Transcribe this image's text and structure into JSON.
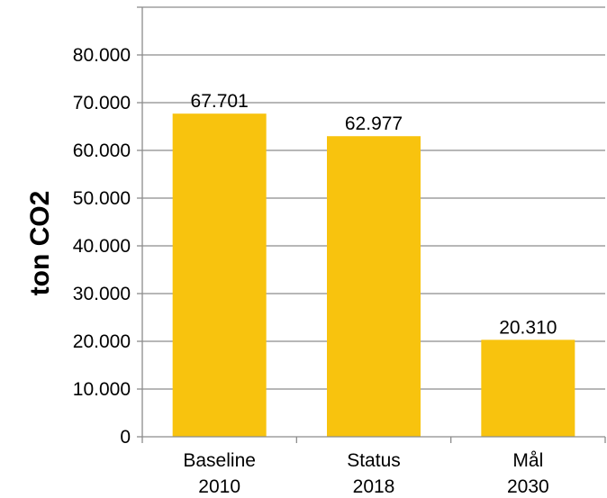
{
  "chart_data": {
    "type": "bar",
    "title": "",
    "xlabel": "",
    "ylabel": "ton CO2",
    "ylim": [
      0,
      90000
    ],
    "yticks": [
      0,
      10000,
      20000,
      30000,
      40000,
      50000,
      60000,
      70000,
      80000
    ],
    "ytick_labels": [
      "0",
      "10.000",
      "20.000",
      "30.000",
      "40.000",
      "50.000",
      "60.000",
      "70.000",
      "80.000"
    ],
    "grid": true,
    "categories": [
      {
        "line1": "Baseline",
        "line2": "2010"
      },
      {
        "line1": "Status",
        "line2": "2018"
      },
      {
        "line1": "Mål",
        "line2": "2030"
      }
    ],
    "values": [
      67701,
      62977,
      20310
    ],
    "data_labels": [
      "67.701",
      "62.977",
      "20.310"
    ],
    "colors": {
      "bar": "#F8C30E",
      "grid": "#8C8C8C",
      "axis": "#8C8C8C"
    }
  }
}
